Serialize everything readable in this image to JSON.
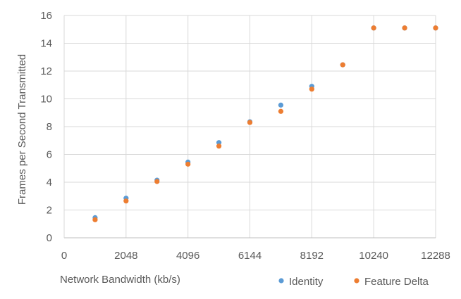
{
  "chart_data": {
    "type": "scatter",
    "title": "",
    "xlabel": "Network Bandwidth (kb/s)",
    "ylabel": "Frames per Second Transmitted",
    "xlim": [
      0,
      12288
    ],
    "ylim": [
      0,
      16
    ],
    "xticks": [
      0,
      2048,
      4096,
      6144,
      8192,
      10240,
      12288
    ],
    "yticks": [
      0,
      2,
      4,
      6,
      8,
      10,
      12,
      14,
      16
    ],
    "grid": true,
    "legend_position": "bottom-right",
    "series": [
      {
        "name": "Identity",
        "color": "#5B9BD5",
        "points": [
          {
            "x": 1024,
            "y": 1.45
          },
          {
            "x": 2048,
            "y": 2.85
          },
          {
            "x": 3072,
            "y": 4.15
          },
          {
            "x": 4096,
            "y": 5.45
          },
          {
            "x": 5120,
            "y": 6.85
          },
          {
            "x": 6144,
            "y": 8.35
          },
          {
            "x": 7168,
            "y": 9.55
          },
          {
            "x": 8192,
            "y": 10.9
          },
          {
            "x": 9216,
            "y": 12.45
          },
          {
            "x": 10240,
            "y": 15.1
          },
          {
            "x": 11264,
            "y": 15.1
          },
          {
            "x": 12288,
            "y": 15.1
          }
        ]
      },
      {
        "name": "Feature Delta",
        "color": "#ED7D31",
        "points": [
          {
            "x": 1024,
            "y": 1.3
          },
          {
            "x": 2048,
            "y": 2.65
          },
          {
            "x": 3072,
            "y": 4.05
          },
          {
            "x": 4096,
            "y": 5.3
          },
          {
            "x": 5120,
            "y": 6.6
          },
          {
            "x": 6144,
            "y": 8.3
          },
          {
            "x": 7168,
            "y": 9.1
          },
          {
            "x": 8192,
            "y": 10.7
          },
          {
            "x": 9216,
            "y": 12.45
          },
          {
            "x": 10240,
            "y": 15.1
          },
          {
            "x": 11264,
            "y": 15.1
          },
          {
            "x": 12288,
            "y": 15.1
          }
        ]
      }
    ]
  }
}
